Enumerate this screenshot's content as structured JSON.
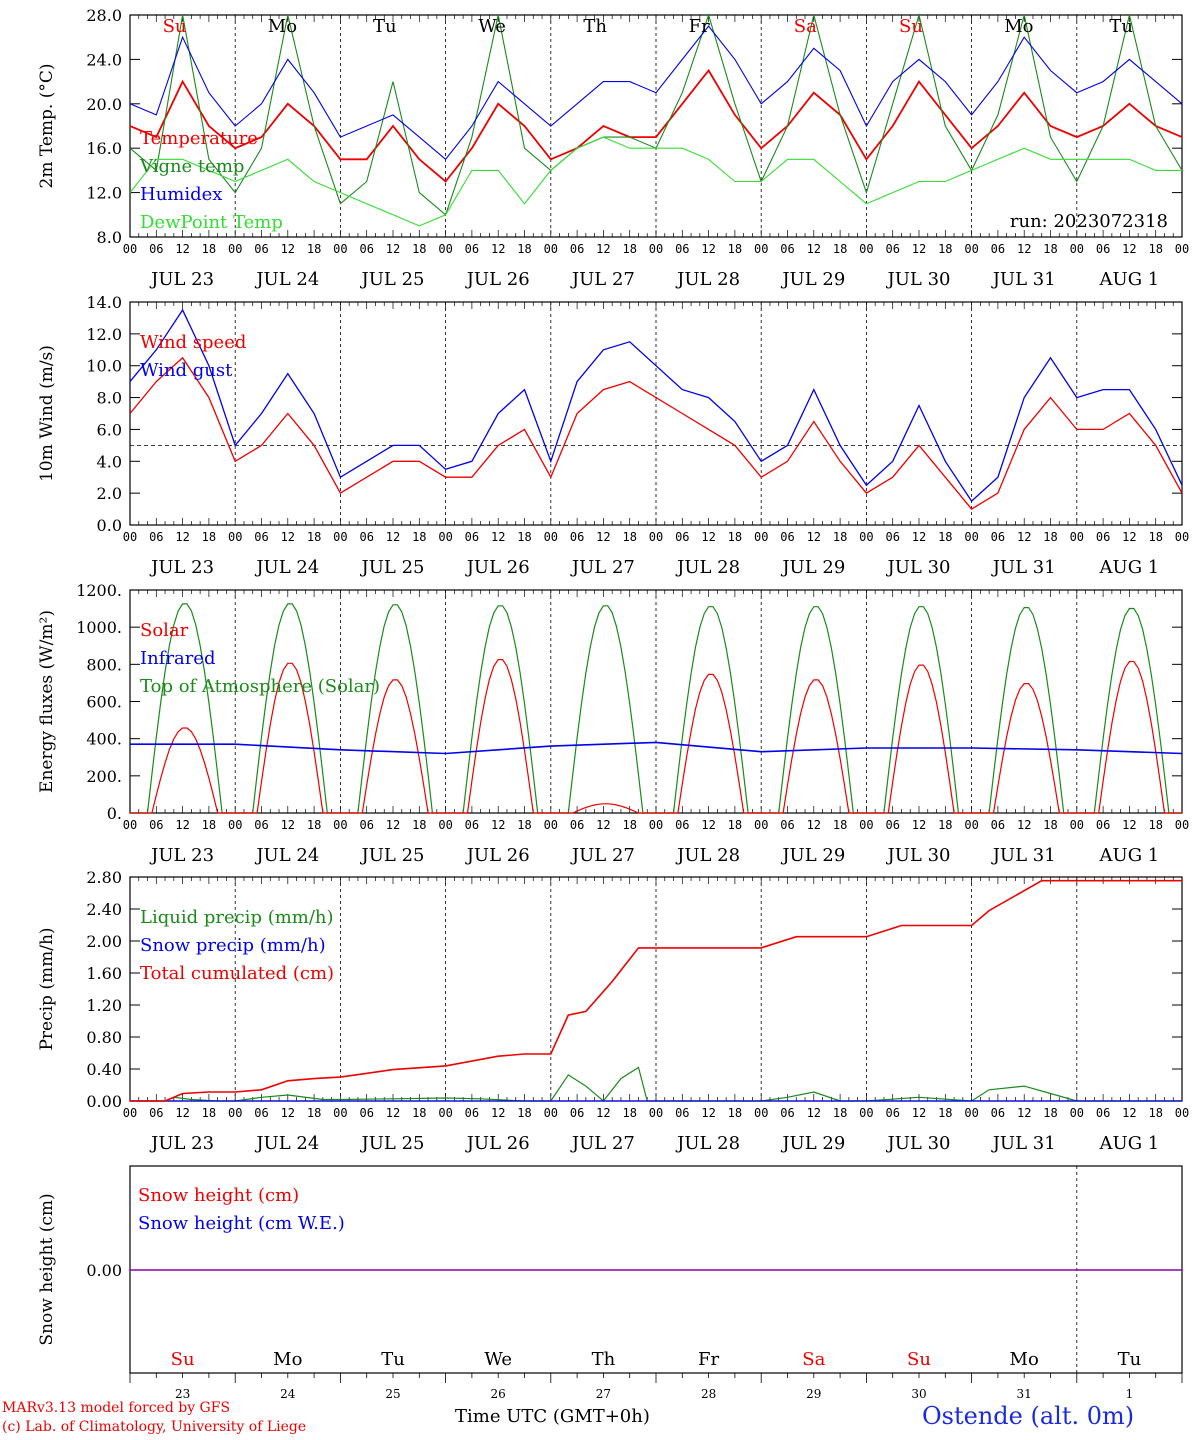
{
  "footer": {
    "credit_line1": "MARv3.13 model forced by GFS",
    "credit_line2": "(c) Lab. of Climatology, University of Liege",
    "xlabel": "Time UTC (GMT+0h)",
    "station": "Ostende (alt. 0m)"
  },
  "colors": {
    "red": "#ee0000",
    "green": "#1a8a1a",
    "blue": "#0000ee",
    "lime": "#33dd33",
    "purple": "#8800aa",
    "axis": "#000000"
  },
  "days": [
    "JUL 23",
    "JUL 24",
    "JUL 25",
    "JUL 26",
    "JUL 27",
    "JUL 28",
    "JUL 29",
    "JUL 30",
    "JUL 31",
    "AUG  1"
  ],
  "weekdays": [
    "Su",
    "Mo",
    "Tu",
    "We",
    "Th",
    "Fr",
    "Sa",
    "Su",
    "Mo",
    "Tu"
  ],
  "weekday_colors": [
    "red",
    "black",
    "black",
    "black",
    "black",
    "black",
    "red",
    "red",
    "black",
    "black"
  ],
  "day_numbers": [
    "23",
    "24",
    "25",
    "26",
    "27",
    "28",
    "29",
    "30",
    "31",
    "1"
  ],
  "hour_labels": [
    "00",
    "06",
    "12",
    "18"
  ],
  "chart_data": [
    {
      "type": "line",
      "ylabel": "2m Temp. (°C)",
      "ylim": [
        8,
        28
      ],
      "yticks": [
        "8.0",
        "12.0",
        "16.0",
        "20.0",
        "24.0",
        "28.0"
      ],
      "run_label": "run: 2023072318",
      "x_unit": "hours since JUL 23 00 UTC",
      "series": [
        {
          "name": "Temperature",
          "color": "red",
          "x": [
            0,
            6,
            12,
            18,
            24,
            30,
            36,
            42,
            48,
            54,
            60,
            66,
            72,
            78,
            84,
            90,
            96,
            102,
            108,
            114,
            120,
            126,
            132,
            138,
            144,
            150,
            156,
            162,
            168,
            174,
            180,
            186,
            192,
            198,
            204,
            210,
            216,
            222,
            228,
            234,
            240
          ],
          "values": [
            18,
            17,
            22,
            18,
            16,
            17,
            20,
            18,
            15,
            15,
            18,
            15,
            13,
            16,
            20,
            18,
            15,
            16,
            18,
            17,
            17,
            20,
            23,
            19,
            16,
            18,
            21,
            19,
            15,
            18,
            22,
            19,
            16,
            18,
            21,
            18,
            17,
            18,
            20,
            18,
            17
          ]
        },
        {
          "name": "Vigne temp",
          "color": "green",
          "x": [
            0,
            6,
            12,
            18,
            24,
            30,
            36,
            42,
            48,
            54,
            60,
            66,
            72,
            78,
            84,
            90,
            96,
            102,
            108,
            114,
            120,
            126,
            132,
            138,
            144,
            150,
            156,
            162,
            168,
            174,
            180,
            186,
            192,
            198,
            204,
            210,
            216,
            222,
            228,
            234,
            240
          ],
          "values": [
            16,
            14,
            28,
            15,
            12,
            16,
            28,
            18,
            11,
            13,
            22,
            12,
            10,
            17,
            28,
            16,
            14,
            16,
            17,
            17,
            16,
            21,
            28,
            20,
            13,
            18,
            28,
            19,
            12,
            20,
            28,
            18,
            14,
            19,
            28,
            17,
            13,
            18,
            28,
            18,
            14
          ]
        },
        {
          "name": "Humidex",
          "color": "blue",
          "x": [
            0,
            6,
            12,
            18,
            24,
            30,
            36,
            42,
            48,
            54,
            60,
            66,
            72,
            78,
            84,
            90,
            96,
            102,
            108,
            114,
            120,
            126,
            132,
            138,
            144,
            150,
            156,
            162,
            168,
            174,
            180,
            186,
            192,
            198,
            204,
            210,
            216,
            222,
            228,
            234,
            240
          ],
          "values": [
            20,
            19,
            26,
            21,
            18,
            20,
            24,
            21,
            17,
            18,
            19,
            17,
            15,
            18,
            22,
            20,
            18,
            20,
            22,
            22,
            21,
            24,
            27,
            24,
            20,
            22,
            25,
            23,
            18,
            22,
            24,
            22,
            19,
            22,
            26,
            23,
            21,
            22,
            24,
            22,
            20
          ]
        },
        {
          "name": "DewPoint Temp",
          "color": "lime",
          "x": [
            0,
            6,
            12,
            18,
            24,
            30,
            36,
            42,
            48,
            54,
            60,
            66,
            72,
            78,
            84,
            90,
            96,
            102,
            108,
            114,
            120,
            126,
            132,
            138,
            144,
            150,
            156,
            162,
            168,
            174,
            180,
            186,
            192,
            198,
            204,
            210,
            216,
            222,
            228,
            234,
            240
          ],
          "values": [
            12,
            15,
            15,
            14,
            13,
            14,
            15,
            13,
            12,
            11,
            10,
            9,
            10,
            14,
            14,
            11,
            14,
            16,
            17,
            16,
            16,
            16,
            15,
            13,
            13,
            15,
            15,
            13,
            11,
            12,
            13,
            13,
            14,
            15,
            16,
            15,
            15,
            15,
            15,
            14,
            14
          ]
        }
      ]
    },
    {
      "type": "line",
      "ylabel": "10m Wind (m/s)",
      "ylim": [
        0,
        14
      ],
      "yticks": [
        "0.0",
        "2.0",
        "4.0",
        "6.0",
        "8.0",
        "10.0",
        "12.0",
        "14.0"
      ],
      "reference_line": 5,
      "series": [
        {
          "name": "Wind speed",
          "color": "red",
          "x": [
            0,
            6,
            12,
            18,
            24,
            30,
            36,
            42,
            48,
            54,
            60,
            66,
            72,
            78,
            84,
            90,
            96,
            102,
            108,
            114,
            120,
            126,
            132,
            138,
            144,
            150,
            156,
            162,
            168,
            174,
            180,
            186,
            192,
            198,
            204,
            210,
            216,
            222,
            228,
            234,
            240
          ],
          "values": [
            7,
            9,
            10.5,
            8,
            4,
            5,
            7,
            5,
            2,
            3,
            4,
            4,
            3,
            3,
            5,
            6,
            3,
            7,
            8.5,
            9,
            8,
            7,
            6,
            5,
            3,
            4,
            6.5,
            4,
            2,
            3,
            5,
            3,
            1,
            2,
            6,
            8,
            6,
            6,
            7,
            5,
            2
          ]
        },
        {
          "name": "Wind gust",
          "color": "blue",
          "x": [
            0,
            6,
            12,
            18,
            24,
            30,
            36,
            42,
            48,
            54,
            60,
            66,
            72,
            78,
            84,
            90,
            96,
            102,
            108,
            114,
            120,
            126,
            132,
            138,
            144,
            150,
            156,
            162,
            168,
            174,
            180,
            186,
            192,
            198,
            204,
            210,
            216,
            222,
            228,
            234,
            240
          ],
          "values": [
            9,
            11,
            13.5,
            10,
            5,
            7,
            9.5,
            7,
            3,
            4,
            5,
            5,
            3.5,
            4,
            7,
            8.5,
            4,
            9,
            11,
            11.5,
            10,
            8.5,
            8,
            6.5,
            4,
            5,
            8.5,
            5,
            2.5,
            4,
            7.5,
            4,
            1.5,
            3,
            8,
            10.5,
            8,
            8.5,
            8.5,
            6,
            2.5
          ]
        }
      ]
    },
    {
      "type": "line",
      "ylabel": "Energy fluxes (W/m²)",
      "ylim": [
        0,
        1200
      ],
      "yticks": [
        "0.",
        "200.",
        "400.",
        "600.",
        "800.",
        "1000.",
        "1200."
      ],
      "series": [
        {
          "name": "Solar",
          "color": "red",
          "daily_peak": [
            460,
            810,
            720,
            830,
            50,
            750,
            720,
            800,
            700,
            820
          ]
        },
        {
          "name": "Infrared",
          "color": "blue",
          "x": [
            0,
            24,
            48,
            72,
            96,
            120,
            144,
            168,
            192,
            216,
            240
          ],
          "values": [
            370,
            370,
            340,
            320,
            360,
            380,
            330,
            350,
            350,
            340,
            320
          ]
        },
        {
          "name": "Top of Atmosphere (Solar)",
          "color": "green",
          "daily_peak": [
            1130,
            1130,
            1125,
            1120,
            1120,
            1115,
            1115,
            1115,
            1110,
            1105
          ]
        }
      ]
    },
    {
      "type": "line",
      "ylabel": "Precip (mm/h)",
      "ylim": [
        0,
        3.0
      ],
      "yticks": [
        "0.00",
        "0.40",
        "0.80",
        "1.20",
        "1.60",
        "2.00",
        "2.40",
        "2.80"
      ],
      "series": [
        {
          "name": "Liquid precip (mm/h)",
          "color": "green",
          "x": [
            0,
            8,
            10,
            14,
            20,
            24,
            30,
            36,
            44,
            48,
            60,
            72,
            80,
            90,
            96,
            100,
            104,
            108,
            112,
            116,
            118,
            120,
            132,
            144,
            150,
            156,
            162,
            168,
            180,
            192,
            196,
            204,
            210,
            216,
            240
          ],
          "values": [
            0,
            0,
            0.05,
            0.02,
            0,
            0,
            0.05,
            0.08,
            0.02,
            0.02,
            0.03,
            0.04,
            0.03,
            0,
            0,
            0.35,
            0.2,
            0,
            0.3,
            0.45,
            0,
            0,
            0,
            0,
            0.05,
            0.12,
            0,
            0,
            0.05,
            0,
            0.15,
            0.2,
            0.1,
            0,
            0
          ]
        },
        {
          "name": "Snow precip (mm/h)",
          "color": "blue",
          "x": [
            0,
            240
          ],
          "values": [
            0,
            0
          ]
        },
        {
          "name": "Total cumulated (cm)",
          "color": "red",
          "x": [
            0,
            8,
            12,
            18,
            24,
            30,
            36,
            42,
            48,
            60,
            72,
            84,
            90,
            96,
            100,
            104,
            110,
            116,
            120,
            144,
            152,
            168,
            176,
            192,
            196,
            208,
            216,
            240
          ],
          "values": [
            0,
            0,
            0.1,
            0.12,
            0.12,
            0.15,
            0.27,
            0.3,
            0.32,
            0.42,
            0.47,
            0.6,
            0.63,
            0.63,
            1.15,
            1.2,
            1.6,
            2.05,
            2.05,
            2.05,
            2.2,
            2.2,
            2.35,
            2.35,
            2.55,
            2.95,
            2.95,
            2.95
          ]
        }
      ]
    },
    {
      "type": "line",
      "ylabel": "Snow height (cm)",
      "ytick": "0.00",
      "series": [
        {
          "name": "Snow height (cm)",
          "color": "red",
          "x": [
            0,
            240
          ],
          "values": [
            0,
            0
          ]
        },
        {
          "name": "Snow height (cm W.E.)",
          "color": "blue",
          "x": [
            0,
            240
          ],
          "values": [
            0,
            0
          ]
        }
      ]
    }
  ]
}
